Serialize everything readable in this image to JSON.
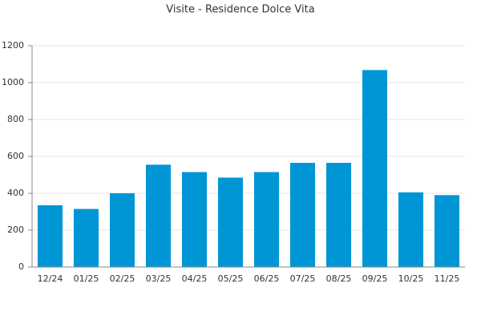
{
  "chart_data": {
    "type": "bar",
    "title": "Visite - Residence Dolce Vita",
    "categories": [
      "12/24",
      "01/25",
      "02/25",
      "03/25",
      "04/25",
      "05/25",
      "06/25",
      "07/25",
      "08/25",
      "09/25",
      "10/25",
      "11/25"
    ],
    "values": [
      335,
      315,
      400,
      555,
      515,
      485,
      515,
      565,
      565,
      1068,
      405,
      390
    ],
    "color": "#0096d6",
    "ylim": [
      0,
      1200
    ],
    "yticks": [
      0,
      200,
      400,
      600,
      800,
      1000,
      1200
    ],
    "grid": true
  }
}
